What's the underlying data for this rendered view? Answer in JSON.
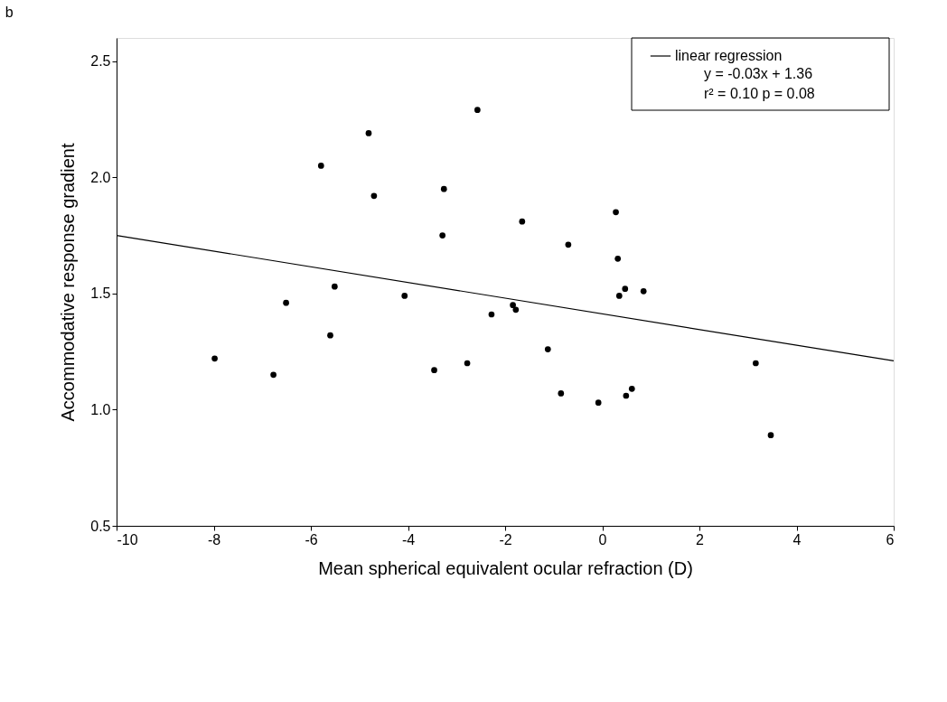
{
  "chart_data": {
    "type": "scatter",
    "title": "b",
    "xlabel": "Mean spherical equivalent ocular refraction (D)",
    "ylabel": "Accommodative response gradient",
    "xlim": [
      -10,
      6
    ],
    "xticks": [
      -10,
      -8,
      -6,
      -4,
      -2,
      0,
      2,
      4,
      6
    ],
    "ylim": [
      0.5,
      2.6
    ],
    "yticks": [
      0.5,
      {
        "value": 1,
        "label": "1.0"
      },
      1.5,
      {
        "value": 2,
        "label": "2.0"
      },
      2.5
    ],
    "grid": false,
    "legend": "top right",
    "series": [
      {
        "marker": "circle",
        "color": "#000000",
        "x": [
          -7.98,
          -6.77,
          -6.51,
          -5.79,
          -5.6,
          -5.51,
          -4.81,
          -4.7,
          -4.07,
          -3.46,
          -3.29,
          -3.26,
          -2.78,
          -2.57,
          -2.28,
          -1.84,
          -1.78,
          -1.65,
          -1.12,
          -0.85,
          -0.7,
          -0.08,
          0.28,
          0.32,
          0.35,
          0.47,
          0.49,
          0.61,
          0.85,
          3.16,
          3.47
        ],
        "values": [
          1.22,
          1.15,
          1.46,
          2.05,
          1.32,
          1.53,
          2.19,
          1.92,
          1.49,
          1.17,
          1.75,
          1.95,
          1.2,
          2.29,
          1.41,
          1.45,
          1.43,
          1.81,
          1.26,
          1.07,
          1.71,
          1.03,
          1.85,
          1.65,
          1.49,
          1.52,
          1.06,
          1.09,
          1.51,
          1.2,
          0.89
        ]
      },
      {
        "type": "line",
        "name": "linear regression",
        "color": "#000000",
        "line_style": "solid",
        "x": [
          -10,
          6
        ],
        "values": [
          1.75,
          1.21
        ]
      }
    ],
    "annotations": [
      "y = -0.03x + 1.36",
      "r² = 0.10 p = 0.08"
    ]
  }
}
